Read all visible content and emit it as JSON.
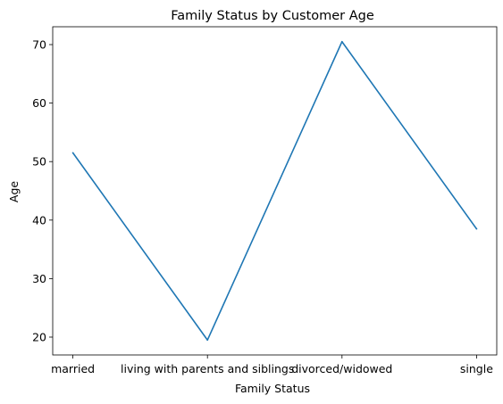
{
  "chart_data": {
    "type": "line",
    "title": "Family Status by Customer Age",
    "xlabel": "Family Status",
    "ylabel": "Age",
    "categories": [
      "married",
      "living with parents and siblings",
      "divorced/widowed",
      "single"
    ],
    "series": [
      {
        "values": [
          51.5,
          19.5,
          70.5,
          38.5
        ]
      }
    ],
    "ylim": [
      16.95,
      73.05
    ],
    "yticks": [
      20,
      30,
      40,
      50,
      60,
      70
    ],
    "grid": false,
    "colors": {
      "line": "#1f77b4"
    }
  }
}
